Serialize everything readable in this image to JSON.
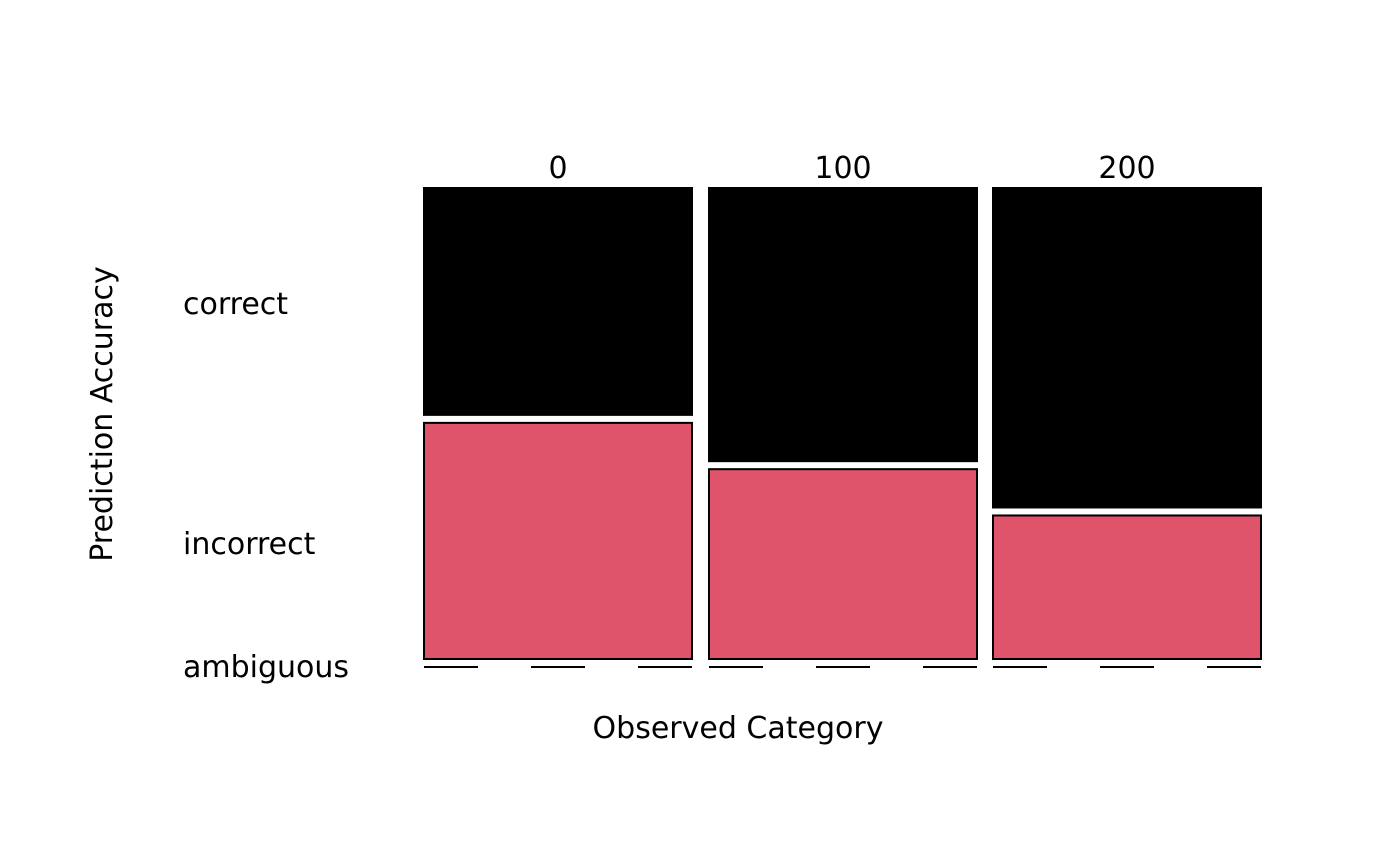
{
  "chart_data": {
    "type": "mosaic",
    "xlabel": "Observed Category",
    "ylabel": "Prediction Accuracy",
    "categories": [
      "0",
      "100",
      "200"
    ],
    "row_labels": [
      "correct",
      "incorrect",
      "ambiguous"
    ],
    "series": [
      {
        "name": "correct",
        "color": "#000000",
        "values": [
          0.49,
          0.59,
          0.69
        ]
      },
      {
        "name": "incorrect",
        "color": "#DF536B",
        "values": [
          0.51,
          0.41,
          0.31
        ]
      },
      {
        "name": "ambiguous",
        "color": "#FFFFFF",
        "values": [
          0,
          0,
          0
        ]
      }
    ]
  }
}
